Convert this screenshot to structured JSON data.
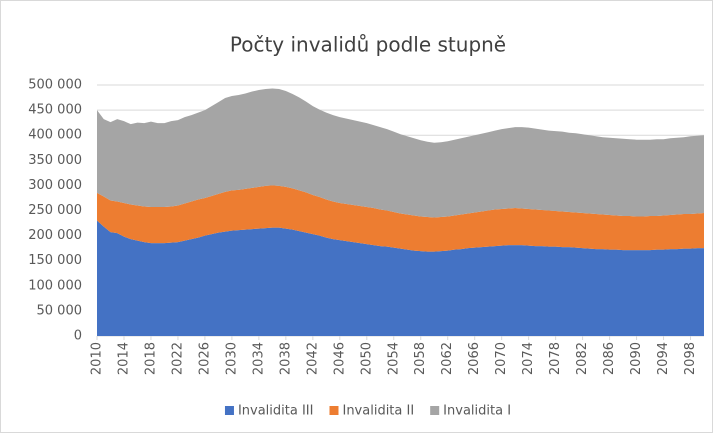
{
  "chart_data": {
    "type": "stacked_area",
    "title": "Počty invalidů podle stupně",
    "x": [
      2010,
      2011,
      2012,
      2013,
      2014,
      2015,
      2016,
      2017,
      2018,
      2019,
      2020,
      2021,
      2022,
      2023,
      2024,
      2025,
      2026,
      2027,
      2028,
      2029,
      2030,
      2031,
      2032,
      2033,
      2034,
      2035,
      2036,
      2037,
      2038,
      2039,
      2040,
      2041,
      2042,
      2043,
      2044,
      2045,
      2046,
      2047,
      2048,
      2049,
      2050,
      2051,
      2052,
      2053,
      2054,
      2055,
      2056,
      2057,
      2058,
      2059,
      2060,
      2061,
      2062,
      2063,
      2064,
      2065,
      2066,
      2067,
      2068,
      2069,
      2070,
      2071,
      2072,
      2073,
      2074,
      2075,
      2076,
      2077,
      2078,
      2079,
      2080,
      2081,
      2082,
      2083,
      2084,
      2085,
      2086,
      2087,
      2088,
      2089,
      2090,
      2091,
      2092,
      2093,
      2094,
      2095,
      2096,
      2097,
      2098,
      2099,
      2100
    ],
    "series": [
      {
        "name": "Invalidita III",
        "color": "#4472c4",
        "values": [
          230000,
          218000,
          207000,
          205000,
          198000,
          193000,
          190000,
          187000,
          185000,
          185000,
          185000,
          186000,
          187000,
          190000,
          193000,
          196000,
          200000,
          203000,
          206000,
          208000,
          210000,
          211000,
          212000,
          213000,
          214000,
          215000,
          216000,
          216000,
          214000,
          212000,
          209000,
          206000,
          203000,
          200000,
          196000,
          193000,
          191000,
          189000,
          187000,
          185000,
          183000,
          181000,
          179000,
          178000,
          176000,
          174000,
          172000,
          170000,
          169000,
          168000,
          168000,
          169000,
          170000,
          172000,
          173000,
          175000,
          176000,
          177000,
          178000,
          179000,
          180000,
          181000,
          181000,
          181000,
          180000,
          179000,
          179000,
          178000,
          178000,
          177000,
          177000,
          176000,
          175000,
          174000,
          173000,
          173000,
          172000,
          172000,
          171000,
          171000,
          171000,
          171000,
          171000,
          172000,
          172000,
          173000,
          173000,
          174000,
          174000,
          175000,
          175000
        ]
      },
      {
        "name": "Invalidita II",
        "color": "#ed7d31",
        "values": [
          55000,
          60000,
          63000,
          63000,
          67000,
          69000,
          70000,
          71000,
          72000,
          72000,
          72000,
          72000,
          73000,
          74000,
          75000,
          76000,
          75000,
          76000,
          77000,
          79000,
          80000,
          80000,
          81000,
          82000,
          83000,
          84000,
          84000,
          83000,
          83000,
          82000,
          81000,
          80000,
          78000,
          77000,
          76000,
          75000,
          74000,
          74000,
          74000,
          74000,
          74000,
          74000,
          73000,
          72000,
          71000,
          70000,
          70000,
          70000,
          69000,
          69000,
          68000,
          68000,
          68000,
          68000,
          69000,
          69000,
          70000,
          71000,
          72000,
          73000,
          73000,
          73000,
          74000,
          73000,
          73000,
          73000,
          72000,
          72000,
          71000,
          71000,
          70000,
          70000,
          70000,
          70000,
          70000,
          69000,
          69000,
          68000,
          68000,
          68000,
          67000,
          67000,
          68000,
          67000,
          68000,
          68000,
          69000,
          69000,
          69000,
          69000,
          70000
        ]
      },
      {
        "name": "Invalidita I",
        "color": "#a5a5a5",
        "values": [
          165000,
          154000,
          156000,
          164000,
          163000,
          160000,
          165000,
          166000,
          170000,
          167000,
          167000,
          170000,
          170000,
          172000,
          172000,
          173000,
          175000,
          179000,
          183000,
          187000,
          188000,
          189000,
          190000,
          192000,
          193000,
          193000,
          193000,
          193000,
          191000,
          188000,
          185000,
          181000,
          177000,
          174000,
          173000,
          172000,
          171000,
          170000,
          169000,
          168000,
          167000,
          165000,
          164000,
          162000,
          160000,
          158000,
          156000,
          154000,
          152000,
          150000,
          149000,
          149000,
          150000,
          151000,
          152000,
          153000,
          154000,
          155000,
          156000,
          157000,
          159000,
          160000,
          161000,
          162000,
          162000,
          161000,
          160000,
          159000,
          159000,
          159000,
          158000,
          158000,
          157000,
          156000,
          155000,
          154000,
          154000,
          154000,
          154000,
          153000,
          153000,
          153000,
          152000,
          153000,
          152000,
          153000,
          153000,
          153000,
          155000,
          155000,
          155000
        ]
      }
    ],
    "xlim": [
      2010,
      2100
    ],
    "xticks": [
      2010,
      2014,
      2018,
      2022,
      2026,
      2030,
      2034,
      2038,
      2042,
      2046,
      2050,
      2054,
      2058,
      2062,
      2066,
      2070,
      2074,
      2078,
      2082,
      2086,
      2090,
      2094,
      2098
    ],
    "ylim": [
      0,
      500000
    ],
    "yticks": [
      0,
      {
        "value": 50000,
        "label": "50 000"
      },
      {
        "value": 100000,
        "label": "100 000"
      },
      {
        "value": 150000,
        "label": "150 000"
      },
      {
        "value": 200000,
        "label": "200 000"
      },
      {
        "value": 250000,
        "label": "250 000"
      },
      {
        "value": 300000,
        "label": "300 000"
      },
      {
        "value": 350000,
        "label": "350 000"
      },
      {
        "value": 400000,
        "label": "400 000"
      },
      {
        "value": 450000,
        "label": "450 000"
      },
      {
        "value": 500000,
        "label": "500 000"
      }
    ],
    "grid": true,
    "legend": "bottom"
  }
}
